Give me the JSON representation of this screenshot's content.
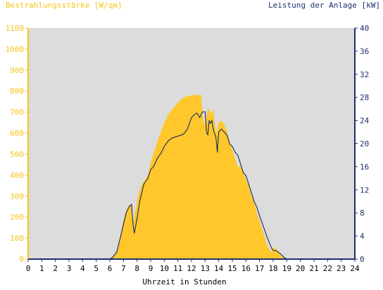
{
  "chart_data": {
    "type": "area",
    "left_axis_title": "Bestrahlungsstärke [W/qm]",
    "right_axis_title": "Leistung der Anlage [kW]",
    "xlabel": "Uhrzeit in Stunden",
    "xlim": [
      0,
      24
    ],
    "ylim_left": [
      0,
      1100
    ],
    "ylim_right": [
      0,
      40
    ],
    "x_ticks": [
      "0",
      "1",
      "2",
      "3",
      "4",
      "5",
      "6",
      "7",
      "8",
      "9",
      "10",
      "11",
      "12",
      "13",
      "14",
      "15",
      "16",
      "17",
      "18",
      "19",
      "20",
      "21",
      "22",
      "23",
      "24"
    ],
    "y_ticks_left": [
      "0",
      "100",
      "200",
      "300",
      "400",
      "500",
      "600",
      "700",
      "800",
      "900",
      "1000",
      "1100"
    ],
    "y_ticks_right": [
      "0",
      "4",
      "8",
      "12",
      "16",
      "20",
      "24",
      "28",
      "32",
      "36",
      "40"
    ],
    "grid": false,
    "colors": {
      "irradiance_fill": "#ffc72c",
      "power_line": "#1a2a5e",
      "plot_background": "#dcdcdc",
      "left_axis": "#f5c518",
      "right_axis": "#1f2f6e"
    },
    "series": [
      {
        "axis": "left",
        "style": "area",
        "x": [
          0,
          6.0,
          6.2,
          6.5,
          6.8,
          7.0,
          7.2,
          7.4,
          7.6,
          7.7,
          7.8,
          8.0,
          8.3,
          8.6,
          8.8,
          9.0,
          9.3,
          9.6,
          10.0,
          10.4,
          10.8,
          11.2,
          11.6,
          12.0,
          12.3,
          12.5,
          12.7,
          12.8,
          12.9,
          13.0,
          13.2,
          13.4,
          13.5,
          13.6,
          13.8,
          14.0,
          14.2,
          14.4,
          14.6,
          14.8,
          15.0,
          15.2,
          15.4,
          15.6,
          15.8,
          16.0,
          16.2,
          16.4,
          16.6,
          16.8,
          17.0,
          17.3,
          17.6,
          17.9,
          18.0,
          18.2,
          18.5,
          18.8,
          19.0,
          19.2,
          24
        ],
        "y": [
          0,
          0,
          10,
          40,
          120,
          185,
          230,
          260,
          250,
          170,
          200,
          280,
          350,
          380,
          400,
          460,
          520,
          580,
          650,
          700,
          730,
          760,
          775,
          780,
          782,
          780,
          785,
          700,
          650,
          640,
          720,
          700,
          690,
          720,
          600,
          650,
          660,
          640,
          610,
          560,
          520,
          480,
          440,
          440,
          420,
          380,
          350,
          300,
          270,
          220,
          180,
          120,
          60,
          30,
          60,
          50,
          20,
          5,
          0,
          0,
          0
        ]
      },
      {
        "axis": "right",
        "style": "line",
        "x": [
          0,
          6.0,
          6.2,
          6.5,
          6.8,
          7.0,
          7.2,
          7.4,
          7.6,
          7.7,
          7.8,
          8.0,
          8.2,
          8.5,
          8.8,
          9.0,
          9.2,
          9.5,
          9.8,
          10.0,
          10.3,
          10.6,
          11.0,
          11.4,
          11.7,
          12.0,
          12.2,
          12.4,
          12.6,
          12.8,
          13.0,
          13.1,
          13.2,
          13.3,
          13.4,
          13.5,
          13.6,
          13.8,
          13.9,
          14.0,
          14.2,
          14.4,
          14.6,
          14.8,
          15.0,
          15.2,
          15.4,
          15.6,
          15.8,
          16.0,
          16.2,
          16.4,
          16.6,
          16.8,
          17.0,
          17.3,
          17.6,
          17.9,
          18.0,
          18.2,
          18.5,
          18.8,
          19.0,
          24
        ],
        "y": [
          0,
          0,
          0.3,
          1.2,
          4,
          6,
          8,
          9,
          9.5,
          6,
          4.5,
          7,
          10,
          13,
          14,
          15.5,
          16,
          17.5,
          18.5,
          19.5,
          20.5,
          21,
          21.3,
          21.6,
          22.5,
          24.5,
          25,
          25.3,
          24.5,
          25.5,
          25.5,
          22,
          21.5,
          24,
          23.5,
          24,
          22.5,
          21,
          18.5,
          22,
          22.5,
          22,
          21.5,
          20,
          19.5,
          18.5,
          18,
          16.5,
          15,
          14.5,
          13,
          11.5,
          10,
          9,
          7.5,
          5.5,
          3.5,
          1.8,
          1.5,
          1.5,
          1.0,
          0.3,
          0,
          0
        ]
      }
    ]
  }
}
